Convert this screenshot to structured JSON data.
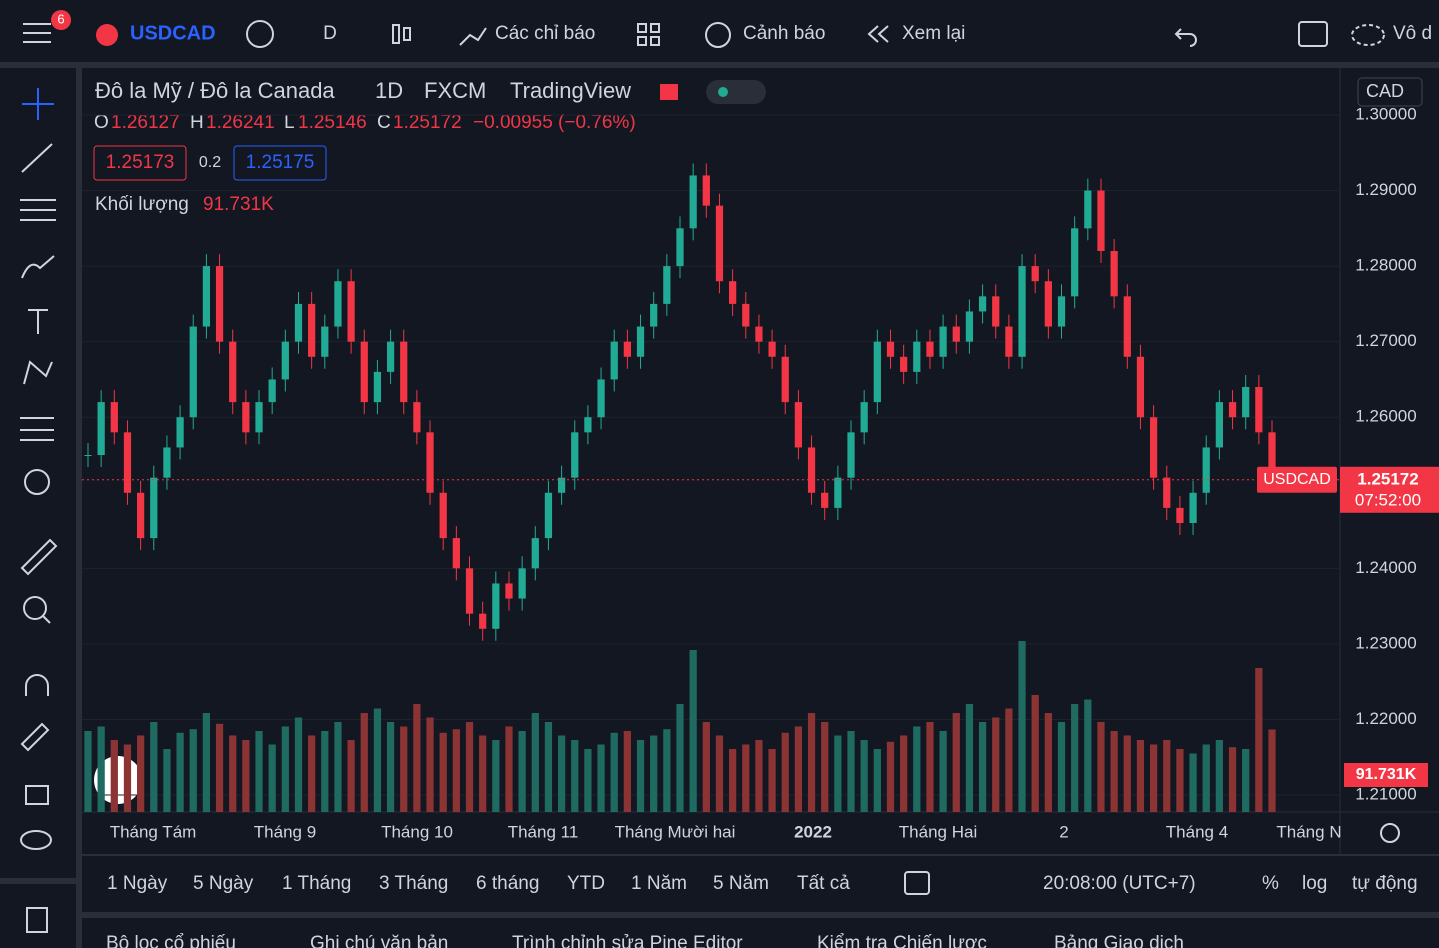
{
  "topbar": {
    "badge": "6",
    "symbol": "USDCAD",
    "interval": "D",
    "indicators": "Các chỉ báo",
    "alerts": "Cảnh báo",
    "replay": "Xem lại",
    "more": "Vô d"
  },
  "legend": {
    "name": "Đô la Mỹ / Đô la Canada",
    "tf": "1D",
    "broker": "FXCM",
    "source": "TradingView",
    "o_label": "O",
    "o": "1.26127",
    "h_label": "H",
    "h": "1.26241",
    "l_label": "L",
    "l": "1.25146",
    "c_label": "C",
    "c": "1.25172",
    "change": "−0.00955 (−0.76%)",
    "bid": "1.25173",
    "spread": "0.2",
    "ask": "1.25175",
    "vol_label": "Khối lượng",
    "vol": "91.731K"
  },
  "currency": "CAD",
  "chart": {
    "ylim": [
      1.2064,
      1.3064
    ],
    "yticks": [
      {
        "value": 1.3,
        "label": "1.30000"
      },
      {
        "value": 1.29,
        "label": "1.29000"
      },
      {
        "value": 1.28,
        "label": "1.28000"
      },
      {
        "value": 1.27,
        "label": "1.27000"
      },
      {
        "value": 1.26,
        "label": "1.26000"
      },
      {
        "value": 1.24,
        "label": "1.24000"
      },
      {
        "value": 1.23,
        "label": "1.23000"
      },
      {
        "value": 1.22,
        "label": "1.22000"
      },
      {
        "value": 1.21,
        "label": "1.21000"
      }
    ],
    "closes": [
      1.255,
      1.262,
      1.258,
      1.25,
      1.244,
      1.252,
      1.256,
      1.26,
      1.272,
      1.28,
      1.27,
      1.262,
      1.258,
      1.262,
      1.265,
      1.27,
      1.275,
      1.268,
      1.272,
      1.278,
      1.27,
      1.262,
      1.266,
      1.27,
      1.262,
      1.258,
      1.25,
      1.244,
      1.24,
      1.234,
      1.232,
      1.238,
      1.236,
      1.24,
      1.244,
      1.25,
      1.252,
      1.258,
      1.26,
      1.265,
      1.27,
      1.268,
      1.272,
      1.275,
      1.28,
      1.285,
      1.292,
      1.288,
      1.278,
      1.275,
      1.272,
      1.27,
      1.268,
      1.262,
      1.256,
      1.25,
      1.248,
      1.252,
      1.258,
      1.262,
      1.27,
      1.268,
      1.266,
      1.27,
      1.268,
      1.272,
      1.27,
      1.274,
      1.276,
      1.272,
      1.268,
      1.28,
      1.278,
      1.272,
      1.276,
      1.285,
      1.29,
      1.282,
      1.276,
      1.268,
      1.26,
      1.252,
      1.248,
      1.246,
      1.25,
      1.256,
      1.262,
      1.26,
      1.264,
      1.258,
      1.25172
    ],
    "volumes": [
      90,
      95,
      80,
      75,
      85,
      100,
      70,
      88,
      92,
      110,
      98,
      85,
      80,
      90,
      75,
      95,
      105,
      85,
      90,
      100,
      80,
      110,
      115,
      100,
      95,
      120,
      105,
      88,
      92,
      100,
      85,
      80,
      95,
      90,
      110,
      100,
      85,
      80,
      70,
      75,
      88,
      90,
      80,
      85,
      92,
      120,
      180,
      100,
      85,
      70,
      75,
      80,
      70,
      88,
      95,
      110,
      100,
      85,
      90,
      80,
      70,
      78,
      85,
      95,
      100,
      90,
      110,
      120,
      100,
      105,
      115,
      190,
      130,
      110,
      100,
      120,
      125,
      100,
      90,
      85,
      80,
      75,
      80,
      70,
      65,
      75,
      80,
      72,
      70,
      160,
      91.731
    ],
    "last_price": 1.25172,
    "last_symbol": "USDCAD",
    "last_time": "07:52:00",
    "last_volume": "91.731K",
    "times": [
      "Tháng Tám",
      "Tháng 9",
      "Tháng 10",
      "Tháng 11",
      "Tháng Mười hai",
      "2022",
      "Tháng Hai",
      "2",
      "Tháng 4",
      "Tháng N"
    ]
  },
  "ranges": [
    "1 Ngày",
    "5 Ngày",
    "1 Tháng",
    "3 Tháng",
    "6 tháng",
    "YTD",
    "1 Năm",
    "5 Năm",
    "Tất cả"
  ],
  "clock": "20:08:00 (UTC+7)",
  "percent": "%",
  "log": "log",
  "auto": "tự động",
  "tabs": [
    "Bộ lọc cổ phiếu",
    "Ghi chú văn bản",
    "Trình chỉnh sửa Pine Editor",
    "Kiểm tra Chiến lược",
    "Bảng Giao dịch"
  ]
}
